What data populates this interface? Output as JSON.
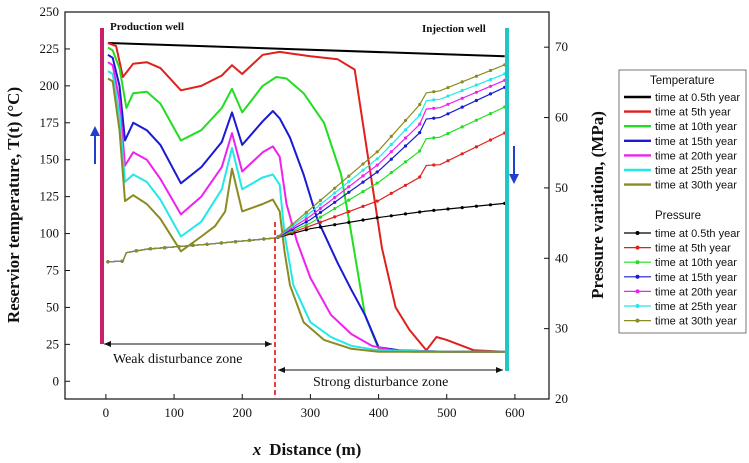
{
  "chart_data": {
    "type": "line",
    "title": "",
    "xlabel_prefix": "x",
    "xlabel": "Distance (m)",
    "ylabel": "Reservior temperature, T(t) (°C)",
    "y2label": "Pressure variation, (MPa)",
    "xlim": [
      -60,
      650
    ],
    "ylim": [
      -12,
      250
    ],
    "y2lim": [
      20,
      75
    ],
    "xticks": [
      0,
      100,
      200,
      300,
      400,
      500,
      600
    ],
    "yticks": [
      0,
      25,
      50,
      75,
      100,
      125,
      150,
      175,
      200,
      225,
      250
    ],
    "y2ticks": [
      20,
      30,
      40,
      50,
      60,
      70
    ],
    "annotations": {
      "production_well": "Production well",
      "injection_well": "Injection well",
      "weak_zone": "Weak disturbance zone",
      "strong_zone": "Strong disturbance zone",
      "boundary_x": 255,
      "production_x": 0,
      "injection_x": 585
    },
    "legend": {
      "temperature_header": "Temperature",
      "pressure_header": "Pressure"
    },
    "series_colors": [
      "#000000",
      "#e0201e",
      "#22dd22",
      "#1a1ad4",
      "#ee22ee",
      "#22e8e8",
      "#8b8b22"
    ],
    "temperature_series": [
      {
        "name": "time at 0.5th year",
        "color": "#000000",
        "x": [
          3,
          585
        ],
        "y": [
          229,
          220
        ]
      },
      {
        "name": "time at 5th year",
        "color": "#e0201e",
        "x": [
          3,
          15,
          25,
          40,
          60,
          80,
          110,
          140,
          170,
          185,
          200,
          230,
          255,
          270,
          300,
          340,
          365,
          385,
          405,
          425,
          445,
          470,
          485,
          500,
          540,
          585
        ],
        "y": [
          229,
          227,
          206,
          215,
          216,
          212,
          197,
          200,
          207,
          214,
          208,
          221,
          223,
          222,
          220,
          218,
          211,
          150,
          90,
          50,
          35,
          21,
          30,
          28,
          21,
          20
        ]
      },
      {
        "name": "time at 10th year",
        "color": "#22dd22",
        "x": [
          3,
          10,
          20,
          30,
          40,
          60,
          80,
          110,
          140,
          170,
          185,
          200,
          230,
          250,
          265,
          290,
          320,
          345,
          360,
          380,
          400,
          420,
          450,
          500,
          585
        ],
        "y": [
          226,
          224,
          212,
          185,
          195,
          196,
          188,
          163,
          170,
          185,
          198,
          182,
          200,
          206,
          205,
          195,
          175,
          140,
          100,
          45,
          22,
          21,
          20,
          20,
          20
        ]
      },
      {
        "name": "time at 15th year",
        "color": "#1a1ad4",
        "x": [
          3,
          10,
          20,
          28,
          40,
          60,
          80,
          110,
          140,
          170,
          185,
          200,
          230,
          245,
          255,
          270,
          290,
          310,
          340,
          360,
          380,
          400,
          430,
          500,
          585
        ],
        "y": [
          221,
          219,
          200,
          163,
          175,
          170,
          160,
          134,
          145,
          162,
          182,
          160,
          176,
          183,
          178,
          165,
          140,
          110,
          80,
          62,
          45,
          23,
          21,
          20,
          20
        ]
      },
      {
        "name": "time at 20th year",
        "color": "#ee22ee",
        "x": [
          3,
          10,
          20,
          28,
          40,
          60,
          80,
          110,
          140,
          170,
          185,
          200,
          230,
          245,
          255,
          265,
          280,
          300,
          330,
          360,
          390,
          420,
          500,
          585
        ],
        "y": [
          216,
          214,
          190,
          146,
          155,
          150,
          137,
          113,
          125,
          145,
          168,
          142,
          155,
          159,
          152,
          120,
          95,
          70,
          45,
          32,
          24,
          21,
          20,
          20
        ]
      },
      {
        "name": "time at 25th year",
        "color": "#22e8e8",
        "x": [
          3,
          10,
          20,
          28,
          40,
          60,
          80,
          110,
          140,
          170,
          185,
          200,
          230,
          245,
          255,
          262,
          275,
          300,
          330,
          360,
          400,
          500,
          585
        ],
        "y": [
          210,
          208,
          180,
          135,
          140,
          135,
          123,
          98,
          108,
          130,
          158,
          130,
          138,
          140,
          133,
          100,
          65,
          40,
          30,
          24,
          21,
          20,
          20
        ]
      },
      {
        "name": "time at 30th year",
        "color": "#8b8b22",
        "x": [
          3,
          10,
          20,
          28,
          40,
          60,
          80,
          110,
          140,
          160,
          175,
          185,
          200,
          230,
          245,
          255,
          262,
          270,
          290,
          320,
          360,
          400,
          500,
          585
        ],
        "y": [
          205,
          203,
          170,
          122,
          126,
          120,
          110,
          88,
          98,
          105,
          115,
          144,
          115,
          120,
          123,
          115,
          88,
          65,
          40,
          28,
          22,
          20,
          20,
          20
        ]
      }
    ],
    "pressure_series": [
      {
        "name": "time at 0.5th year",
        "color": "#000000",
        "x": [
          3,
          25,
          30,
          60,
          150,
          250,
          300,
          400,
          470,
          585
        ],
        "y": [
          39.5,
          39.6,
          40.8,
          41.3,
          42.0,
          42.9,
          44.2,
          45.8,
          46.7,
          47.8
        ]
      },
      {
        "name": "time at 5th year",
        "color": "#e0201e",
        "x": [
          3,
          25,
          30,
          60,
          150,
          250,
          300,
          400,
          460,
          470,
          490,
          585
        ],
        "y": [
          39.5,
          39.6,
          40.8,
          41.3,
          42.0,
          42.9,
          44.6,
          48.2,
          51.5,
          53.2,
          53.3,
          57.8
        ]
      },
      {
        "name": "time at 10th year",
        "color": "#22dd22",
        "x": [
          3,
          25,
          30,
          60,
          150,
          250,
          300,
          400,
          460,
          470,
          490,
          585
        ],
        "y": [
          39.5,
          39.6,
          40.8,
          41.3,
          42.0,
          42.9,
          45.0,
          50.8,
          55.2,
          57.0,
          57.2,
          61.5
        ]
      },
      {
        "name": "time at 15th year",
        "color": "#1a1ad4",
        "x": [
          3,
          25,
          30,
          60,
          150,
          250,
          300,
          400,
          460,
          470,
          490,
          585
        ],
        "y": [
          39.5,
          39.6,
          40.8,
          41.3,
          42.0,
          42.9,
          45.5,
          52.4,
          57.8,
          59.8,
          60.0,
          64.3
        ]
      },
      {
        "name": "time at 20th year",
        "color": "#ee22ee",
        "x": [
          3,
          25,
          30,
          60,
          150,
          250,
          300,
          400,
          460,
          470,
          490,
          585
        ],
        "y": [
          39.5,
          39.6,
          40.8,
          41.3,
          42.0,
          42.9,
          46.0,
          53.4,
          59.0,
          61.2,
          61.4,
          65.3
        ]
      },
      {
        "name": "time at 25th year",
        "color": "#22e8e8",
        "x": [
          3,
          25,
          30,
          60,
          150,
          250,
          300,
          400,
          460,
          470,
          490,
          585
        ],
        "y": [
          39.5,
          39.6,
          40.8,
          41.3,
          42.0,
          42.9,
          46.5,
          54.3,
          60.3,
          62.4,
          62.6,
          66.2
        ]
      },
      {
        "name": "time at 30th year",
        "color": "#8b8b22",
        "x": [
          3,
          25,
          30,
          60,
          150,
          250,
          300,
          400,
          460,
          470,
          490,
          585
        ],
        "y": [
          39.5,
          39.6,
          40.8,
          41.3,
          42.0,
          42.9,
          47.0,
          55.3,
          61.8,
          63.5,
          63.8,
          67.5
        ]
      }
    ]
  }
}
